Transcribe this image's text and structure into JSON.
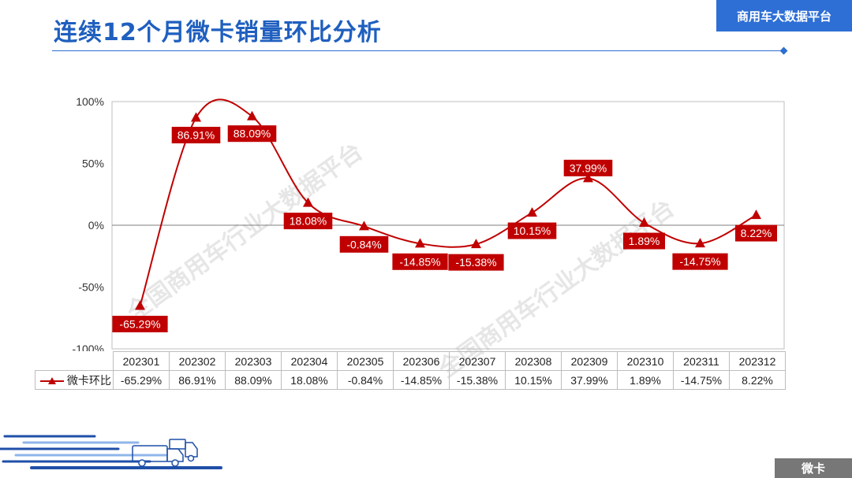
{
  "header": {
    "title": "连续12个月微卡销量环比分析",
    "platform_badge": "商用车大数据平台"
  },
  "footer": {
    "category_badge": "微卡"
  },
  "watermark": {
    "text": "全国商用车行业大数据平台"
  },
  "colors": {
    "accent_blue": "#2c6fd1",
    "series_red": "#c00000",
    "footer_gray": "#777777"
  },
  "chart_data": {
    "type": "line",
    "categories": [
      "202301",
      "202302",
      "202303",
      "202304",
      "202305",
      "202306",
      "202307",
      "202308",
      "202309",
      "202310",
      "202311",
      "202312"
    ],
    "series": [
      {
        "name": "微卡环比",
        "values": [
          -65.29,
          86.91,
          88.09,
          18.08,
          -0.84,
          -14.85,
          -15.38,
          10.15,
          37.99,
          1.89,
          -14.75,
          8.22
        ],
        "labels": [
          "-65.29%",
          "86.91%",
          "88.09%",
          "18.08%",
          "-0.84%",
          "-14.85%",
          "-15.38%",
          "10.15%",
          "37.99%",
          "1.89%",
          "-14.75%",
          "8.22%"
        ],
        "color": "#c00000",
        "marker": "triangle"
      }
    ],
    "yticks": [
      "100%",
      "50%",
      "0%",
      "-50%",
      "-100%"
    ],
    "ylim": [
      -100,
      100
    ],
    "grid": false,
    "data_table": true,
    "smooth": true
  }
}
